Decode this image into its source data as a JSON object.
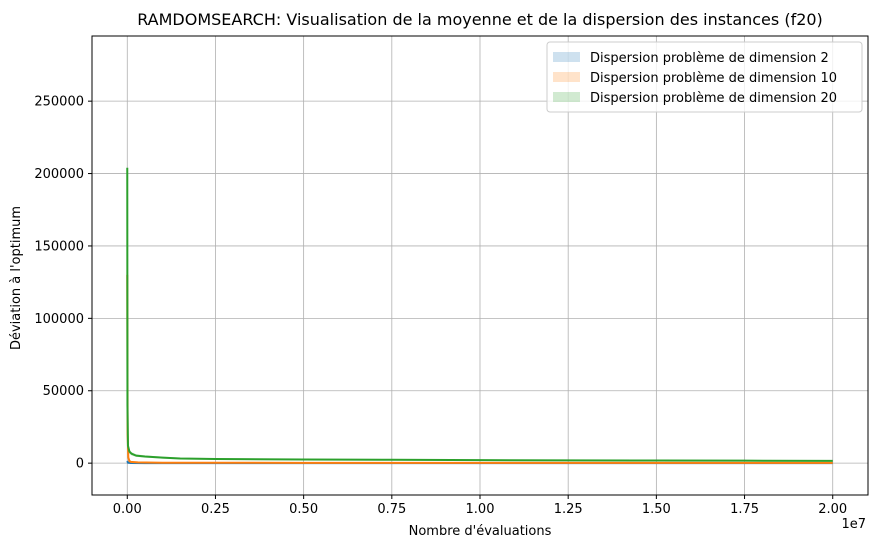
{
  "chart_data": {
    "type": "line",
    "title": "RAMDOMSEARCH: Visualisation de la moyenne et de la dispersion des instances (f20)",
    "xlabel": "Nombre d'évaluations",
    "ylabel": "Déviation à l'optimum",
    "x_multiplier_label": "1e7",
    "xlim": [
      -1000000,
      21000000
    ],
    "ylim": [
      -22000,
      295000
    ],
    "xticks": [
      0,
      2500000,
      5000000,
      7500000,
      10000000,
      12500000,
      15000000,
      17500000,
      20000000
    ],
    "xtick_labels": [
      "0.00",
      "0.25",
      "0.50",
      "0.75",
      "1.00",
      "1.25",
      "1.50",
      "1.75",
      "2.00"
    ],
    "yticks": [
      0,
      50000,
      100000,
      150000,
      200000,
      250000
    ],
    "ytick_labels": [
      "0",
      "50000",
      "100000",
      "150000",
      "200000",
      "250000"
    ],
    "grid": true,
    "legend_position": "top-right",
    "series": [
      {
        "name": "Dispersion problème de dimension 2",
        "color": "#1f77b4",
        "x": [
          0,
          20000,
          100000,
          500000,
          2000000,
          20000000
        ],
        "y": [
          1500,
          300,
          80,
          30,
          10,
          5
        ],
        "band_low": [
          0,
          0,
          0,
          0,
          0,
          0
        ],
        "band_high": [
          3000,
          600,
          150,
          60,
          20,
          10
        ]
      },
      {
        "name": "Dispersion problème de dimension 10",
        "color": "#ff7f0e",
        "x": [
          0,
          10000,
          30000,
          60000,
          100000,
          300000,
          1000000,
          5000000,
          20000000
        ],
        "y": [
          130000,
          20000,
          4000,
          1500,
          900,
          500,
          300,
          200,
          150
        ],
        "band_low": [
          80000,
          8000,
          1500,
          700,
          400,
          250,
          150,
          100,
          80
        ],
        "band_high": [
          175000,
          35000,
          7000,
          2500,
          1400,
          800,
          450,
          300,
          220
        ]
      },
      {
        "name": "Dispersion problème de dimension 20",
        "color": "#2ca02c",
        "x": [
          0,
          5000,
          20000,
          60000,
          120000,
          250000,
          500000,
          1000000,
          1500000,
          2500000,
          5000000,
          7500000,
          10000000,
          12500000,
          15000000,
          17500000,
          20000000
        ],
        "y": [
          204000,
          40000,
          12000,
          8000,
          6500,
          5200,
          4600,
          3800,
          3200,
          2900,
          2500,
          2300,
          2100,
          1900,
          1800,
          1700,
          1600
        ],
        "band_low": [
          190000,
          30000,
          9000,
          6500,
          5300,
          4300,
          3800,
          3100,
          2600,
          2300,
          2000,
          1800,
          1650,
          1500,
          1400,
          1300,
          1250
        ],
        "band_high": [
          210000,
          52000,
          15000,
          9500,
          7700,
          6100,
          5400,
          4500,
          3800,
          3500,
          3000,
          2800,
          2550,
          2300,
          2200,
          2100,
          1950
        ]
      }
    ]
  }
}
